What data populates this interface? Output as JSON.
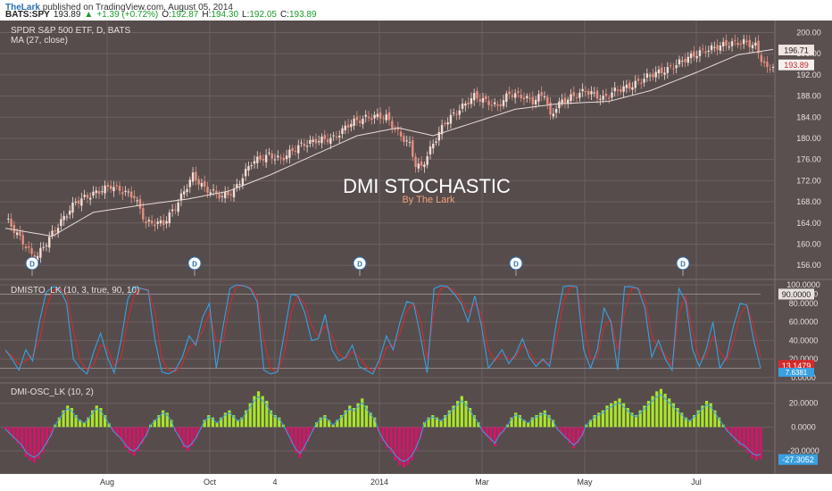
{
  "header": {
    "author": "TheLark",
    "published_text": "published on TradingView.com, August 05, 2014",
    "symbol": "BATS:SPY",
    "last": "193.89",
    "change": "+1.39 (+0.72%)",
    "open_label": "O:",
    "open": "192.87",
    "high_label": "H:",
    "high": "194.30",
    "low_label": "L:",
    "low": "192.05",
    "close_label": "C:",
    "close": "193.89"
  },
  "colors": {
    "background": "#564c4c",
    "grid": "#6b6161",
    "candle_up": "#f5dcd4",
    "candle_down": "#e59080",
    "ma_line": "#e8dcd8",
    "stoch_k": "#3aa0e0",
    "stoch_d": "#d52a2a",
    "hist_pos": "#a8e62a",
    "hist_neg": "#d4156a",
    "text": "#e6e0de",
    "title": "#ffffff",
    "subtitle": "#f0a078"
  },
  "chart_data": [
    {
      "type": "candlestick",
      "title": "SPDR S&P 500 ETF, D, BATS",
      "indicator": "MA (27, close)",
      "overlay_title": "DMI STOCHASTIC",
      "overlay_subtitle": "By The Lark",
      "y_ticks": [
        "156.00",
        "160.00",
        "164.00",
        "168.00",
        "172.00",
        "176.00",
        "180.00",
        "184.00",
        "188.00",
        "192.00",
        "196.00",
        "200.00"
      ],
      "ylim": [
        154,
        201.6
      ],
      "price_labels": [
        "196.71",
        "193.89"
      ],
      "x_ticks": [
        "Aug",
        "Oct",
        "4",
        "2014",
        "Mar",
        "May",
        "Jul"
      ],
      "dividend_marker": "D",
      "close_path": [
        [
          0,
          165.0
        ],
        [
          8,
          158.8
        ],
        [
          10,
          157.0
        ],
        [
          16,
          162.0
        ],
        [
          24,
          168.0
        ],
        [
          32,
          170.0
        ],
        [
          36,
          171.0
        ],
        [
          44,
          169.0
        ],
        [
          48,
          164.0
        ],
        [
          54,
          164.0
        ],
        [
          58,
          167.0
        ],
        [
          64,
          173.0
        ],
        [
          68,
          170.5
        ],
        [
          74,
          169.0
        ],
        [
          78,
          170.0
        ],
        [
          84,
          175.5
        ],
        [
          90,
          176.8
        ],
        [
          94,
          176.0
        ],
        [
          100,
          178.5
        ],
        [
          106,
          179.6
        ],
        [
          112,
          180.0
        ],
        [
          118,
          183.0
        ],
        [
          124,
          184.0
        ],
        [
          128,
          184.2
        ],
        [
          130,
          184.0
        ],
        [
          134,
          181.0
        ],
        [
          138,
          178.8
        ],
        [
          140,
          175.0
        ],
        [
          142,
          174.5
        ],
        [
          146,
          179.0
        ],
        [
          150,
          183.0
        ],
        [
          156,
          186.0
        ],
        [
          160,
          188.0
        ],
        [
          164,
          187.0
        ],
        [
          168,
          186.0
        ],
        [
          172,
          188.5
        ],
        [
          176,
          188.0
        ],
        [
          180,
          187.0
        ],
        [
          184,
          188.5
        ],
        [
          186,
          184.0
        ],
        [
          188,
          186.0
        ],
        [
          190,
          187.0
        ],
        [
          198,
          189.0
        ],
        [
          204,
          187.5
        ],
        [
          208,
          189.0
        ],
        [
          214,
          190.0
        ],
        [
          220,
          192.0
        ],
        [
          226,
          193.0
        ],
        [
          232,
          195.0
        ],
        [
          238,
          196.5
        ],
        [
          244,
          197.5
        ],
        [
          248,
          198.0
        ],
        [
          252,
          198.2
        ],
        [
          256,
          197.5
        ],
        [
          258,
          195.0
        ],
        [
          260,
          193.0
        ],
        [
          262,
          193.9
        ]
      ],
      "ma_path": [
        [
          0,
          163.0
        ],
        [
          16,
          161.5
        ],
        [
          30,
          166.0
        ],
        [
          48,
          167.5
        ],
        [
          62,
          168.5
        ],
        [
          76,
          170.0
        ],
        [
          90,
          173.0
        ],
        [
          106,
          177.0
        ],
        [
          120,
          180.5
        ],
        [
          134,
          182.0
        ],
        [
          146,
          180.5
        ],
        [
          160,
          183.0
        ],
        [
          174,
          185.5
        ],
        [
          188,
          186.5
        ],
        [
          206,
          187.0
        ],
        [
          220,
          189.0
        ],
        [
          236,
          192.5
        ],
        [
          250,
          195.8
        ],
        [
          262,
          196.8
        ]
      ]
    },
    {
      "type": "line",
      "title": "DMISTO_LK (10, 3, true, 90, 10)",
      "y_ticks": [
        "0.0000",
        "20.0000",
        "40.0000",
        "60.0000",
        "80.0000",
        "90.0000",
        "100.0000"
      ],
      "ylim": [
        -2,
        102
      ],
      "levels": [
        90,
        10
      ],
      "value_labels": [
        "13.1479",
        "7.6381"
      ],
      "series": [
        {
          "values": [
            30,
            20,
            8,
            30,
            18,
            60,
            92,
            98,
            96,
            80,
            20,
            10,
            4,
            28,
            48,
            22,
            5,
            40,
            85,
            98,
            96,
            94,
            40,
            6,
            4,
            8,
            22,
            45,
            35,
            65,
            80,
            10,
            55,
            96,
            100,
            99,
            96,
            82,
            8,
            4,
            6,
            48,
            90,
            88,
            70,
            40,
            42,
            68,
            30,
            18,
            22,
            35,
            12,
            8,
            4,
            20,
            45,
            30,
            60,
            82,
            80,
            45,
            5,
            96,
            99,
            98,
            90,
            80,
            60,
            88,
            55,
            10,
            20,
            30,
            15,
            25,
            42,
            22,
            12,
            20,
            12,
            60,
            98,
            99,
            98,
            30,
            10,
            30,
            75,
            60,
            8,
            98,
            98,
            96,
            75,
            22,
            40,
            20,
            8,
            96,
            82,
            30,
            12,
            30,
            60,
            10,
            22,
            55,
            80,
            78,
            40,
            10
          ]
        },
        {
          "values": [
            28,
            24,
            14,
            18,
            24,
            40,
            75,
            94,
            97,
            90,
            50,
            18,
            8,
            14,
            35,
            32,
            12,
            22,
            62,
            90,
            96,
            95,
            70,
            20,
            8,
            6,
            14,
            32,
            38,
            50,
            70,
            40,
            38,
            80,
            98,
            99,
            97,
            88,
            40,
            10,
            6,
            26,
            70,
            88,
            80,
            56,
            44,
            56,
            45,
            25,
            20,
            28,
            22,
            12,
            7,
            12,
            32,
            35,
            48,
            72,
            80,
            62,
            20,
            70,
            96,
            98,
            94,
            85,
            70,
            80,
            68,
            30,
            18,
            25,
            20,
            22,
            35,
            28,
            16,
            18,
            15,
            40,
            82,
            97,
            98,
            60,
            20,
            22,
            55,
            62,
            30,
            70,
            96,
            97,
            85,
            45,
            32,
            25,
            12,
            70,
            88,
            50,
            20,
            22,
            45,
            28,
            18,
            38,
            68,
            78,
            55,
            22
          ]
        }
      ]
    },
    {
      "type": "bar",
      "title": "DMI-OSC_LK (10, 2)",
      "y_ticks": [
        "-20.0000",
        "0.0000",
        "20.0000"
      ],
      "ylim": [
        -38,
        34
      ],
      "value_label": "-27.3052",
      "values": [
        -2,
        -6,
        -10,
        -14,
        -18,
        -25,
        -28,
        -30,
        -27,
        -22,
        -15,
        -8,
        2,
        8,
        14,
        18,
        16,
        10,
        6,
        4,
        8,
        14,
        18,
        16,
        10,
        3,
        -4,
        -8,
        -12,
        -18,
        -22,
        -24,
        -20,
        -14,
        -8,
        2,
        6,
        10,
        14,
        12,
        6,
        -4,
        -10,
        -18,
        -20,
        -16,
        -10,
        -2,
        6,
        10,
        8,
        4,
        8,
        12,
        14,
        10,
        6,
        8,
        14,
        20,
        26,
        30,
        26,
        22,
        14,
        10,
        8,
        2,
        -6,
        -14,
        -22,
        -26,
        -20,
        -12,
        -4,
        4,
        8,
        10,
        6,
        2,
        6,
        10,
        14,
        18,
        16,
        20,
        24,
        18,
        12,
        8,
        -4,
        -12,
        -18,
        -22,
        -28,
        -32,
        -34,
        -32,
        -28,
        -20,
        -10,
        4,
        8,
        10,
        8,
        6,
        10,
        14,
        18,
        22,
        26,
        22,
        16,
        10,
        4,
        -4,
        -8,
        -12,
        -16,
        -8,
        -4,
        2,
        8,
        12,
        10,
        6,
        4,
        8,
        10,
        12,
        14,
        10,
        6,
        -2,
        -6,
        -10,
        -14,
        -18,
        -14,
        -8,
        2,
        6,
        10,
        12,
        14,
        18,
        20,
        22,
        24,
        20,
        16,
        12,
        10,
        14,
        18,
        22,
        26,
        30,
        32,
        28,
        24,
        20,
        16,
        12,
        8,
        6,
        10,
        14,
        18,
        22,
        20,
        14,
        8,
        2,
        -4,
        -8,
        -12,
        -16,
        -18,
        -22,
        -26,
        -28,
        -27
      ]
    }
  ]
}
